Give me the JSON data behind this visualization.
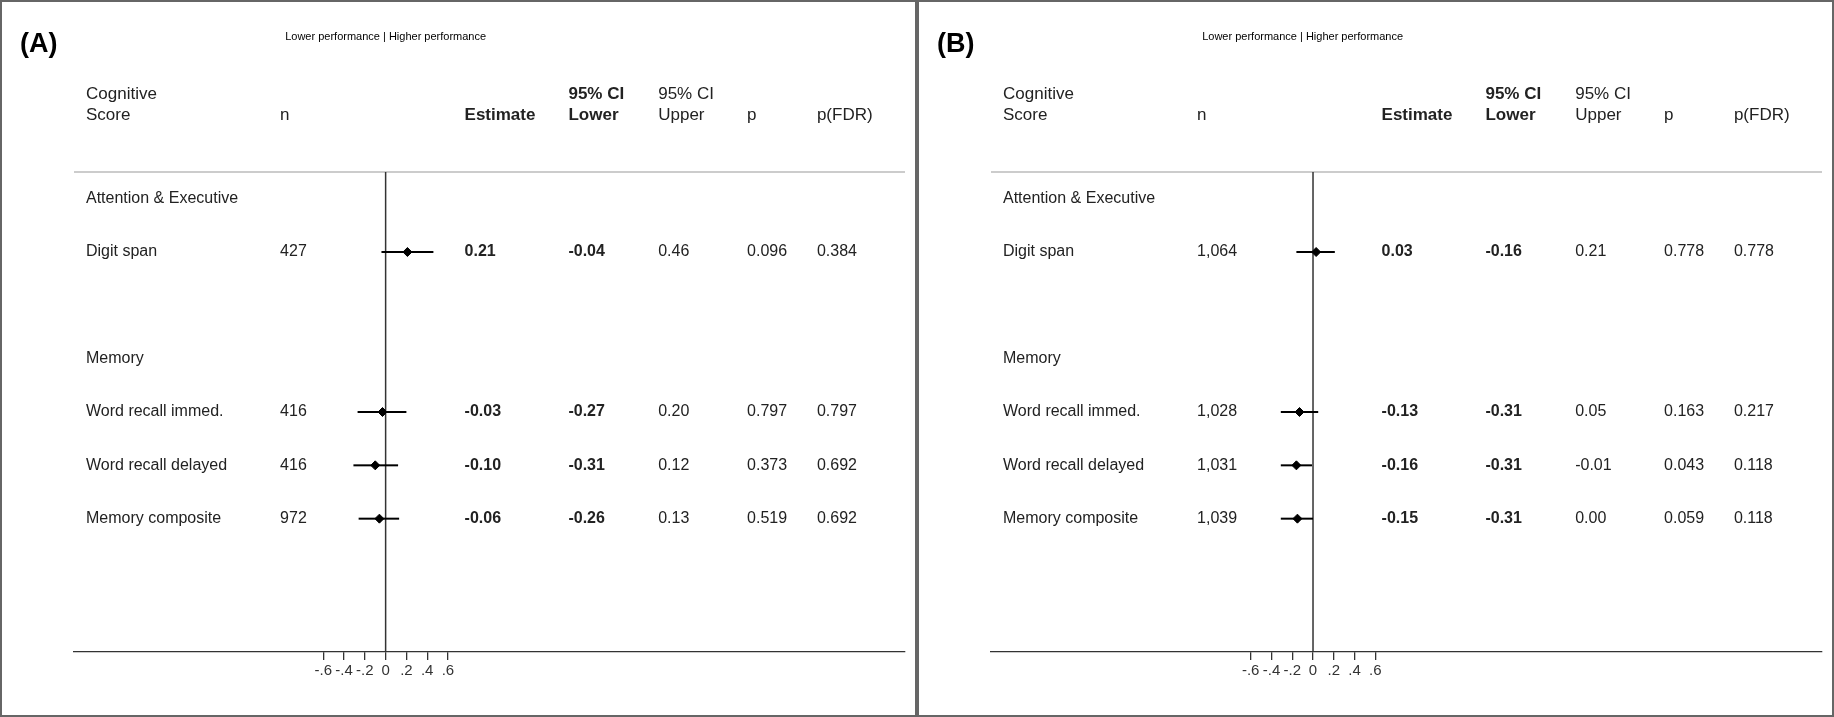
{
  "chart_data": [
    {
      "type": "scatter",
      "title": "(A)",
      "subtitle": "Lower performance | Higher performance",
      "ylabel": "Cognitive Score",
      "orientation": "horizontal",
      "color": "#000000",
      "marker": "diamond",
      "grid": false,
      "legend": false,
      "categories": [
        "Attention & Executive",
        "Digit span",
        null,
        "Memory",
        "Word recall immed.",
        "Word recall delayed",
        "Memory composite",
        null,
        null
      ],
      "values": [
        null,
        0.21,
        null,
        null,
        -0.03,
        -0.1,
        -0.06,
        null,
        null
      ],
      "errors": [
        null,
        [
          -0.04,
          0.46
        ],
        null,
        null,
        [
          -0.27,
          0.2
        ],
        [
          -0.31,
          0.12
        ],
        [
          -0.26,
          0.13
        ],
        null,
        null
      ],
      "xlim": [
        -3,
        5
      ],
      "xticks": [
        {
          "value": -0.6,
          "label": "-.6"
        },
        {
          "value": -0.4,
          "label": "-.4"
        },
        {
          "value": -0.2,
          "label": "-.2"
        },
        0,
        {
          "value": 0.2,
          "label": ".2"
        },
        {
          "value": 0.4,
          "label": ".4"
        },
        {
          "value": 0.6,
          "label": ".6"
        }
      ],
      "ref_lines": [
        {
          "axis": "x",
          "value": 0,
          "color": "#333333"
        }
      ],
      "annotations": [
        "n",
        "Estimate",
        "95% CI Lower",
        "95% CI Upper",
        "p",
        "p(FDR)",
        "427",
        "0.21",
        "-0.04",
        "0.46",
        "0.096",
        "0.384",
        "416",
        "-0.03",
        "-0.27",
        "0.20",
        "0.797",
        "0.797",
        "416",
        "-0.10",
        "-0.31",
        "0.12",
        "0.373",
        "0.692",
        "972",
        "-0.06",
        "-0.26",
        "0.13",
        "0.519",
        "0.692"
      ]
    },
    {
      "type": "scatter",
      "title": "(B)",
      "subtitle": "Lower performance | Higher performance",
      "ylabel": "Cognitive Score",
      "orientation": "horizontal",
      "color": "#000000",
      "marker": "diamond",
      "grid": false,
      "legend": false,
      "categories": [
        "Attention & Executive",
        "Digit span",
        null,
        "Memory",
        "Word recall immed.",
        "Word recall delayed",
        "Memory composite",
        null,
        null
      ],
      "values": [
        null,
        0.03,
        null,
        null,
        -0.13,
        -0.16,
        -0.15,
        null,
        null
      ],
      "errors": [
        null,
        [
          -0.16,
          0.21
        ],
        null,
        null,
        [
          -0.31,
          0.05
        ],
        [
          -0.31,
          -0.01
        ],
        [
          -0.31,
          0.0
        ],
        null,
        null
      ],
      "xlim": [
        -3.1,
        4.9
      ],
      "xticks": [
        {
          "value": -0.6,
          "label": "-.6"
        },
        {
          "value": -0.4,
          "label": "-.4"
        },
        {
          "value": -0.2,
          "label": "-.2"
        },
        0,
        {
          "value": 0.2,
          "label": ".2"
        },
        {
          "value": 0.4,
          "label": ".4"
        },
        {
          "value": 0.6,
          "label": ".6"
        }
      ],
      "ref_lines": [
        {
          "axis": "x",
          "value": 0,
          "color": "#333333"
        }
      ],
      "annotations": [
        "n",
        "Estimate",
        "95% CI Lower",
        "95% CI Upper",
        "p",
        "p(FDR)",
        "1,064",
        "0.03",
        "-0.16",
        "0.21",
        "0.778",
        "0.778",
        "1,028",
        "-0.13",
        "-0.31",
        "0.05",
        "0.163",
        "0.217",
        "1,031",
        "-0.16",
        "-0.31",
        "-0.01",
        "0.043",
        "0.118",
        "1,039",
        "-0.15",
        "-0.31",
        "0.00",
        "0.059",
        "0.118"
      ]
    }
  ]
}
